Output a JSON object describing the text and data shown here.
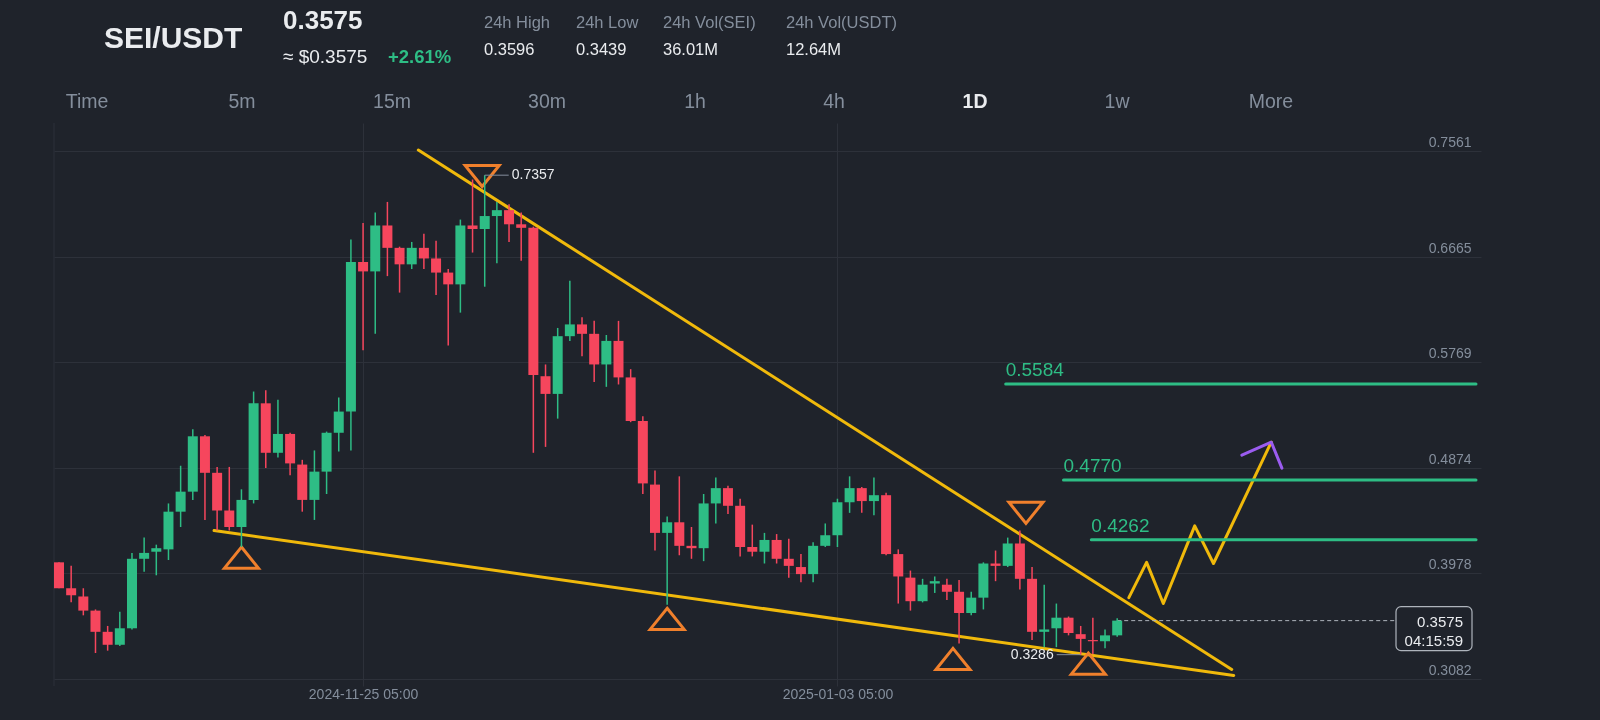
{
  "chart_data": {
    "type": "candlestick",
    "title": "SEI/USDT",
    "subtitle": "0.3575",
    "annotations": [
      "≈ $0.3575",
      "+2.61%",
      "24h High",
      "0.3596",
      "24h Low",
      "0.3439",
      "24h Vol(SEI)",
      "36.01M",
      "24h Vol(USDT)",
      "12.64M",
      "Time",
      "5m",
      "15m",
      "30m",
      "1h",
      "4h",
      "1D",
      "1w",
      "More",
      "04:15:59",
      {
        "text": "0.7357",
        "x": "2024-12-05T05:00",
        "y": 0.7357
      },
      {
        "text": "0.3286",
        "x": "2025-01-23T05:00",
        "y": 0.3286
      }
    ],
    "x": [
      "2024-10-31T05:00",
      "2024-11-01T05:00",
      "2024-11-02T05:00",
      "2024-11-03T05:00",
      "2024-11-04T05:00",
      "2024-11-05T05:00",
      "2024-11-06T05:00",
      "2024-11-07T05:00",
      "2024-11-08T05:00",
      "2024-11-09T05:00",
      "2024-11-10T05:00",
      "2024-11-11T05:00",
      "2024-11-12T05:00",
      "2024-11-13T05:00",
      "2024-11-14T05:00",
      "2024-11-15T05:00",
      "2024-11-16T05:00",
      "2024-11-17T05:00",
      "2024-11-18T05:00",
      "2024-11-19T05:00",
      "2024-11-20T05:00",
      "2024-11-21T05:00",
      "2024-11-22T05:00",
      "2024-11-23T05:00",
      "2024-11-24T05:00",
      "2024-11-25T05:00",
      "2024-11-26T05:00",
      "2024-11-27T05:00",
      "2024-11-28T05:00",
      "2024-11-29T05:00",
      "2024-11-30T05:00",
      "2024-12-01T05:00",
      "2024-12-02T05:00",
      "2024-12-03T05:00",
      "2024-12-04T05:00",
      "2024-12-05T05:00",
      "2024-12-06T05:00",
      "2024-12-07T05:00",
      "2024-12-08T05:00",
      "2024-12-09T05:00",
      "2024-12-10T05:00",
      "2024-12-11T05:00",
      "2024-12-12T05:00",
      "2024-12-13T05:00",
      "2024-12-14T05:00",
      "2024-12-15T05:00",
      "2024-12-16T05:00",
      "2024-12-17T05:00",
      "2024-12-18T05:00",
      "2024-12-19T05:00",
      "2024-12-20T05:00",
      "2024-12-21T05:00",
      "2024-12-22T05:00",
      "2024-12-23T05:00",
      "2024-12-24T05:00",
      "2024-12-25T05:00",
      "2024-12-26T05:00",
      "2024-12-27T05:00",
      "2024-12-28T05:00",
      "2024-12-29T05:00",
      "2024-12-30T05:00",
      "2024-12-31T05:00",
      "2025-01-01T05:00",
      "2025-01-02T05:00",
      "2025-01-03T05:00",
      "2025-01-04T05:00",
      "2025-01-05T05:00",
      "2025-01-06T05:00",
      "2025-01-07T05:00",
      "2025-01-08T05:00",
      "2025-01-09T05:00",
      "2025-01-10T05:00",
      "2025-01-11T05:00",
      "2025-01-12T05:00",
      "2025-01-13T05:00",
      "2025-01-14T05:00",
      "2025-01-15T05:00",
      "2025-01-16T05:00",
      "2025-01-17T05:00",
      "2025-01-18T05:00",
      "2025-01-19T05:00",
      "2025-01-20T05:00",
      "2025-01-21T05:00",
      "2025-01-22T05:00",
      "2025-01-23T05:00",
      "2025-01-24T05:00",
      "2025-01-25T05:00",
      "2025-01-26T05:00"
    ],
    "ohlc": [
      [
        0.407,
        0.407,
        0.385,
        0.385
      ],
      [
        0.385,
        0.404,
        0.373,
        0.379
      ],
      [
        0.378,
        0.385,
        0.362,
        0.366
      ],
      [
        0.366,
        0.367,
        0.33,
        0.348
      ],
      [
        0.348,
        0.353,
        0.332,
        0.337
      ],
      [
        0.337,
        0.365,
        0.336,
        0.351
      ],
      [
        0.351,
        0.415,
        0.35,
        0.41
      ],
      [
        0.41,
        0.428,
        0.399,
        0.415
      ],
      [
        0.416,
        0.422,
        0.396,
        0.419
      ],
      [
        0.418,
        0.457,
        0.409,
        0.45
      ],
      [
        0.45,
        0.489,
        0.437,
        0.467
      ],
      [
        0.467,
        0.52,
        0.46,
        0.514
      ],
      [
        0.514,
        0.515,
        0.443,
        0.483
      ],
      [
        0.483,
        0.488,
        0.434,
        0.451
      ],
      [
        0.451,
        0.488,
        0.434,
        0.437
      ],
      [
        0.437,
        0.469,
        0.42,
        0.46
      ],
      [
        0.46,
        0.552,
        0.457,
        0.542
      ],
      [
        0.542,
        0.553,
        0.487,
        0.5
      ],
      [
        0.5,
        0.545,
        0.496,
        0.516
      ],
      [
        0.516,
        0.517,
        0.481,
        0.491
      ],
      [
        0.49,
        0.494,
        0.45,
        0.46
      ],
      [
        0.46,
        0.502,
        0.443,
        0.484
      ],
      [
        0.484,
        0.518,
        0.465,
        0.517
      ],
      [
        0.517,
        0.547,
        0.501,
        0.535
      ],
      [
        0.535,
        0.681,
        0.502,
        0.662
      ],
      [
        0.662,
        0.695,
        0.587,
        0.654
      ],
      [
        0.654,
        0.704,
        0.601,
        0.693
      ],
      [
        0.693,
        0.713,
        0.65,
        0.674
      ],
      [
        0.674,
        0.675,
        0.636,
        0.66
      ],
      [
        0.66,
        0.679,
        0.656,
        0.674
      ],
      [
        0.674,
        0.686,
        0.656,
        0.665
      ],
      [
        0.665,
        0.68,
        0.634,
        0.653
      ],
      [
        0.653,
        0.656,
        0.591,
        0.643
      ],
      [
        0.643,
        0.698,
        0.619,
        0.693
      ],
      [
        0.693,
        0.732,
        0.67,
        0.69
      ],
      [
        0.69,
        0.7357,
        0.641,
        0.701
      ],
      [
        0.701,
        0.713,
        0.661,
        0.706
      ],
      [
        0.706,
        0.711,
        0.679,
        0.694
      ],
      [
        0.694,
        0.704,
        0.663,
        0.691
      ],
      [
        0.691,
        0.692,
        0.5,
        0.566
      ],
      [
        0.565,
        0.575,
        0.505,
        0.55
      ],
      [
        0.55,
        0.606,
        0.529,
        0.599
      ],
      [
        0.599,
        0.646,
        0.595,
        0.609
      ],
      [
        0.609,
        0.615,
        0.582,
        0.601
      ],
      [
        0.601,
        0.612,
        0.56,
        0.575
      ],
      [
        0.575,
        0.6,
        0.556,
        0.595
      ],
      [
        0.595,
        0.612,
        0.558,
        0.564
      ],
      [
        0.564,
        0.571,
        0.526,
        0.527
      ],
      [
        0.527,
        0.531,
        0.465,
        0.474
      ],
      [
        0.473,
        0.485,
        0.417,
        0.432
      ],
      [
        0.432,
        0.446,
        0.371,
        0.441
      ],
      [
        0.441,
        0.48,
        0.413,
        0.421
      ],
      [
        0.421,
        0.437,
        0.41,
        0.419
      ],
      [
        0.419,
        0.465,
        0.408,
        0.457
      ],
      [
        0.457,
        0.479,
        0.44,
        0.47
      ],
      [
        0.47,
        0.472,
        0.448,
        0.455
      ],
      [
        0.455,
        0.461,
        0.412,
        0.42
      ],
      [
        0.42,
        0.439,
        0.412,
        0.416
      ],
      [
        0.416,
        0.432,
        0.406,
        0.426
      ],
      [
        0.426,
        0.431,
        0.406,
        0.41
      ],
      [
        0.41,
        0.427,
        0.394,
        0.404
      ],
      [
        0.403,
        0.414,
        0.39,
        0.397
      ],
      [
        0.397,
        0.424,
        0.39,
        0.421
      ],
      [
        0.421,
        0.44,
        0.42,
        0.43
      ],
      [
        0.43,
        0.461,
        0.42,
        0.458
      ],
      [
        0.458,
        0.48,
        0.449,
        0.47
      ],
      [
        0.47,
        0.471,
        0.449,
        0.459
      ],
      [
        0.459,
        0.479,
        0.447,
        0.464
      ],
      [
        0.464,
        0.466,
        0.413,
        0.414
      ],
      [
        0.414,
        0.418,
        0.372,
        0.395
      ],
      [
        0.394,
        0.4,
        0.366,
        0.374
      ],
      [
        0.374,
        0.393,
        0.373,
        0.388
      ],
      [
        0.389,
        0.395,
        0.381,
        0.391
      ],
      [
        0.388,
        0.393,
        0.375,
        0.382
      ],
      [
        0.382,
        0.392,
        0.338,
        0.364
      ],
      [
        0.364,
        0.382,
        0.362,
        0.377
      ],
      [
        0.377,
        0.407,
        0.367,
        0.406
      ],
      [
        0.406,
        0.417,
        0.391,
        0.404
      ],
      [
        0.404,
        0.428,
        0.403,
        0.423
      ],
      [
        0.423,
        0.434,
        0.384,
        0.393
      ],
      [
        0.393,
        0.403,
        0.341,
        0.348
      ],
      [
        0.348,
        0.388,
        0.335,
        0.35
      ],
      [
        0.351,
        0.372,
        0.335,
        0.36
      ],
      [
        0.36,
        0.361,
        0.345,
        0.347
      ],
      [
        0.346,
        0.353,
        0.3286,
        0.342
      ],
      [
        0.341,
        0.36,
        0.329,
        0.34
      ],
      [
        0.34,
        0.35,
        0.334,
        0.345
      ],
      [
        0.345,
        0.3596,
        0.3439,
        0.3575
      ]
    ],
    "colors": [
      "#f6465d",
      "#f6465d",
      "#f6465d",
      "#f6465d",
      "#f6465d",
      "#2ebd85",
      "#2ebd85",
      "#2ebd85",
      "#2ebd85",
      "#2ebd85",
      "#2ebd85",
      "#2ebd85",
      "#f6465d",
      "#f6465d",
      "#f6465d",
      "#2ebd85",
      "#2ebd85",
      "#f6465d",
      "#2ebd85",
      "#f6465d",
      "#f6465d",
      "#2ebd85",
      "#2ebd85",
      "#2ebd85",
      "#2ebd85",
      "#f6465d",
      "#2ebd85",
      "#f6465d",
      "#f6465d",
      "#2ebd85",
      "#f6465d",
      "#f6465d",
      "#f6465d",
      "#2ebd85",
      "#f6465d",
      "#2ebd85",
      "#2ebd85",
      "#f6465d",
      "#f6465d",
      "#f6465d",
      "#f6465d",
      "#2ebd85",
      "#2ebd85",
      "#f6465d",
      "#f6465d",
      "#2ebd85",
      "#f6465d",
      "#f6465d",
      "#f6465d",
      "#f6465d",
      "#2ebd85",
      "#f6465d",
      "#f6465d",
      "#2ebd85",
      "#2ebd85",
      "#f6465d",
      "#f6465d",
      "#f6465d",
      "#2ebd85",
      "#f6465d",
      "#f6465d",
      "#f6465d",
      "#2ebd85",
      "#2ebd85",
      "#2ebd85",
      "#2ebd85",
      "#f6465d",
      "#2ebd85",
      "#f6465d",
      "#f6465d",
      "#f6465d",
      "#2ebd85",
      "#2ebd85",
      "#f6465d",
      "#f6465d",
      "#2ebd85",
      "#2ebd85",
      "#f6465d",
      "#2ebd85",
      "#f6465d",
      "#f6465d",
      "#2ebd85",
      "#2ebd85",
      "#f6465d",
      "#f6465d",
      "#f6465d",
      "#2ebd85",
      "#2ebd85"
    ],
    "series": [
      {
        "type": "line",
        "color": "#f0b90b",
        "x": [
          "2024-11-29T18:00",
          "2025-02-04T15:00"
        ],
        "values": [
          0.757,
          0.316
        ]
      },
      {
        "type": "line",
        "color": "#f0b90b",
        "x": [
          "2024-11-12T23:00",
          "2025-02-04T19:00"
        ],
        "values": [
          0.434,
          0.311
        ]
      },
      {
        "type": "line",
        "color": "#f0b90b",
        "x": [
          "2025-01-27T04:00",
          "2025-01-28T15:00",
          "2025-01-30T00:00",
          "2025-02-01T14:00",
          "2025-02-03T03:00",
          "2025-02-07T21:00"
        ],
        "values": [
          0.377,
          0.407,
          0.372,
          0.438,
          0.406,
          0.509
        ]
      },
      {
        "type": "line",
        "color": "#9b5cf0",
        "x": [
          "2025-02-05T11:00",
          "2025-02-07T21:00",
          "2025-02-08T18:00"
        ],
        "values": [
          0.498,
          0.509,
          0.487
        ]
      },
      {
        "type": "line",
        "color": "#2ebd85",
        "x": [
          "2025-01-17T01:00",
          "2025-02-24T17:00"
        ],
        "values": [
          0.5584,
          0.5584
        ],
        "value_labels": [
          "0.5584",
          null
        ]
      },
      {
        "type": "line",
        "color": "#2ebd85",
        "x": [
          "2025-01-21T19:00",
          "2025-02-24T17:00"
        ],
        "values": [
          0.477,
          0.477
        ],
        "value_labels": [
          "0.4770",
          null
        ]
      },
      {
        "type": "line",
        "color": "#2ebd85",
        "x": [
          "2025-01-24T02:00",
          "2025-02-24T17:00"
        ],
        "values": [
          0.4262,
          0.4262
        ],
        "value_labels": [
          "0.4262",
          null
        ]
      },
      {
        "type": "scatter",
        "color": "#f0802c",
        "marker": "triangle",
        "x": [
          "2024-11-15T05:00",
          "2024-12-20T05:00",
          "2025-01-12T17:00",
          "2025-01-23T20:00"
        ],
        "values": [
          0.411,
          0.359,
          0.325,
          0.321
        ]
      },
      {
        "type": "scatter",
        "color": "#f0802c",
        "marker": "triangle-down",
        "x": [
          "2024-12-05T00:00",
          "2025-01-18T17:00"
        ],
        "values": [
          0.735,
          0.449
        ]
      }
    ],
    "ref_lines": [
      {
        "axis": "y",
        "value": 0.3575,
        "label": "0.3575",
        "color": "#aeb4bc",
        "line_style": "dashed"
      }
    ],
    "xlim": [
      "2024-10-31T05:00",
      "2025-02-24T17:00"
    ],
    "ylim": [
      0.302,
      0.78
    ],
    "xticks": [
      {
        "value": "2024-11-25T05:00",
        "label": "2024-11-25 05:00"
      },
      {
        "value": "2025-01-03T05:00",
        "label": "2025-01-03 05:00"
      }
    ],
    "yticks": [
      0.3082,
      0.3978,
      0.4874,
      0.5769,
      0.6665,
      0.7561
    ],
    "grid": true
  }
}
